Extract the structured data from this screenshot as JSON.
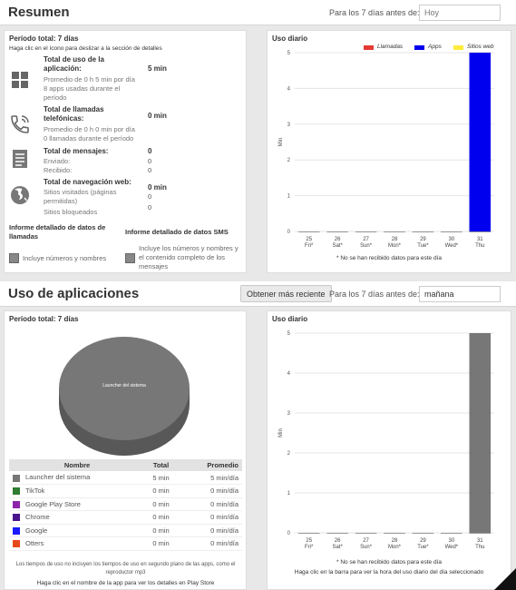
{
  "summary": {
    "title": "Resumen",
    "date_label": "Para los 7 días antes de:",
    "date_placeholder": "Hoy",
    "period": "Período total: 7 días",
    "hint": "Haga clic en el ícono para deslizar a la sección de detalles",
    "usage": {
      "title": "Total de uso de la aplicación:",
      "value": "5 min",
      "sub1": "Promedio de 0 h 5 min por día",
      "sub2": "8 apps usadas durante el período"
    },
    "calls": {
      "title": "Total de llamadas telefónicas:",
      "value": "0 min",
      "sub1": "Promedio de 0 h 0 min por día",
      "sub2": "0 llamadas durante el período"
    },
    "messages": {
      "title": "Total de mensajes:",
      "value": "0",
      "sent_label": "Enviado:",
      "sent_value": "0",
      "received_label": "Recibido:",
      "received_value": "0"
    },
    "web": {
      "title": "Total de navegación web:",
      "value": "0 min",
      "visited_label": "Sitios visitados (páginas permitidas)",
      "visited_value": "0",
      "blocked_label": "Sitios bloqueados",
      "blocked_value": "0"
    },
    "calls_report": {
      "title": "Informe detallado de datos de llamadas",
      "checkbox_label": "Incluye números y nombres"
    },
    "sms_report": {
      "title": "Informe detallado de datos SMS",
      "checkbox_label": "Incluye los números y nombres y el contenido completo de los mensajes"
    },
    "chart_title": "Uso diario",
    "chart_note": "* No se han recibido datos para este día"
  },
  "apps": {
    "title": "Uso de aplicaciones",
    "refresh_button": "Obtener más reciente",
    "date_label": "Para los 7 días antes de:",
    "date_value": "mañana",
    "period": "Período total: 7 días",
    "pie_label": "Launcher del sistema",
    "table_headers": [
      "Nombre",
      "Total",
      "Promedio"
    ],
    "table_rows": [
      {
        "name": "Launcher del sistema",
        "total": "5 min",
        "avg": "5 min/día",
        "color": "#777777"
      },
      {
        "name": "TikTok",
        "total": "0 min",
        "avg": "0 min/día",
        "color": "#2e7d32"
      },
      {
        "name": "Google Play Store",
        "total": "0 min",
        "avg": "0 min/día",
        "color": "#8e24aa"
      },
      {
        "name": "Chrome",
        "total": "0 min",
        "avg": "0 min/día",
        "color": "#4a148c"
      },
      {
        "name": "Google",
        "total": "0 min",
        "avg": "0 min/día",
        "color": "#1a1aff"
      },
      {
        "name": "Otters",
        "total": "0 min",
        "avg": "0 min/día",
        "color": "#e64a19"
      }
    ],
    "note1": "Los tiempos de uso no incluyen los tiempos de uso en segundo plano de las apps, como el reproductor mp3",
    "note2": "Haga clic en el nombre de la app para ver los detalles en Play Store",
    "chart_title": "Uso diario",
    "chart_note1": "* No se han recibido datos para este día",
    "chart_note2": "Haga clic en la barra para ver la hora del uso diario del día seleccionado"
  },
  "chart_data": [
    {
      "type": "bar",
      "title": "Uso diario",
      "ylabel": "Min",
      "ylim": [
        0,
        5
      ],
      "yticks": [
        "0",
        "1",
        "2",
        "3",
        "4",
        "5"
      ],
      "legend_position": "top",
      "categories": [
        {
          "day": "25",
          "dow": "Fri*"
        },
        {
          "day": "26",
          "dow": "Sat*"
        },
        {
          "day": "27",
          "dow": "Sun*"
        },
        {
          "day": "28",
          "dow": "Mon*"
        },
        {
          "day": "29",
          "dow": "Tue*"
        },
        {
          "day": "30",
          "dow": "Wed*"
        },
        {
          "day": "31",
          "dow": "Thu"
        }
      ],
      "series": [
        {
          "name": "Llamadas",
          "color": "#e53935",
          "values": [
            0,
            0,
            0,
            0,
            0,
            0,
            0
          ]
        },
        {
          "name": "Apps",
          "color": "#0000ee",
          "values": [
            0,
            0,
            0,
            0,
            0,
            0,
            5
          ]
        },
        {
          "name": "Sitios web",
          "color": "#ffeb3b",
          "values": [
            0,
            0,
            0,
            0,
            0,
            0,
            0
          ]
        }
      ]
    },
    {
      "type": "bar",
      "title": "Uso diario",
      "ylabel": "Min",
      "ylim": [
        0,
        5
      ],
      "yticks": [
        "0",
        "1",
        "2",
        "3",
        "4",
        "5"
      ],
      "categories": [
        {
          "day": "25",
          "dow": "Fri*"
        },
        {
          "day": "26",
          "dow": "Sat*"
        },
        {
          "day": "27",
          "dow": "Sun*"
        },
        {
          "day": "28",
          "dow": "Mon*"
        },
        {
          "day": "29",
          "dow": "Tue*"
        },
        {
          "day": "30",
          "dow": "Wed*"
        },
        {
          "day": "31",
          "dow": "Thu"
        }
      ],
      "series": [
        {
          "color": "#777777",
          "values": [
            0,
            0,
            0,
            0,
            0,
            0,
            5
          ]
        }
      ]
    },
    {
      "type": "pie",
      "categories": [
        "Launcher del sistema"
      ],
      "values": [
        100
      ],
      "colors": [
        "#777777"
      ]
    }
  ]
}
